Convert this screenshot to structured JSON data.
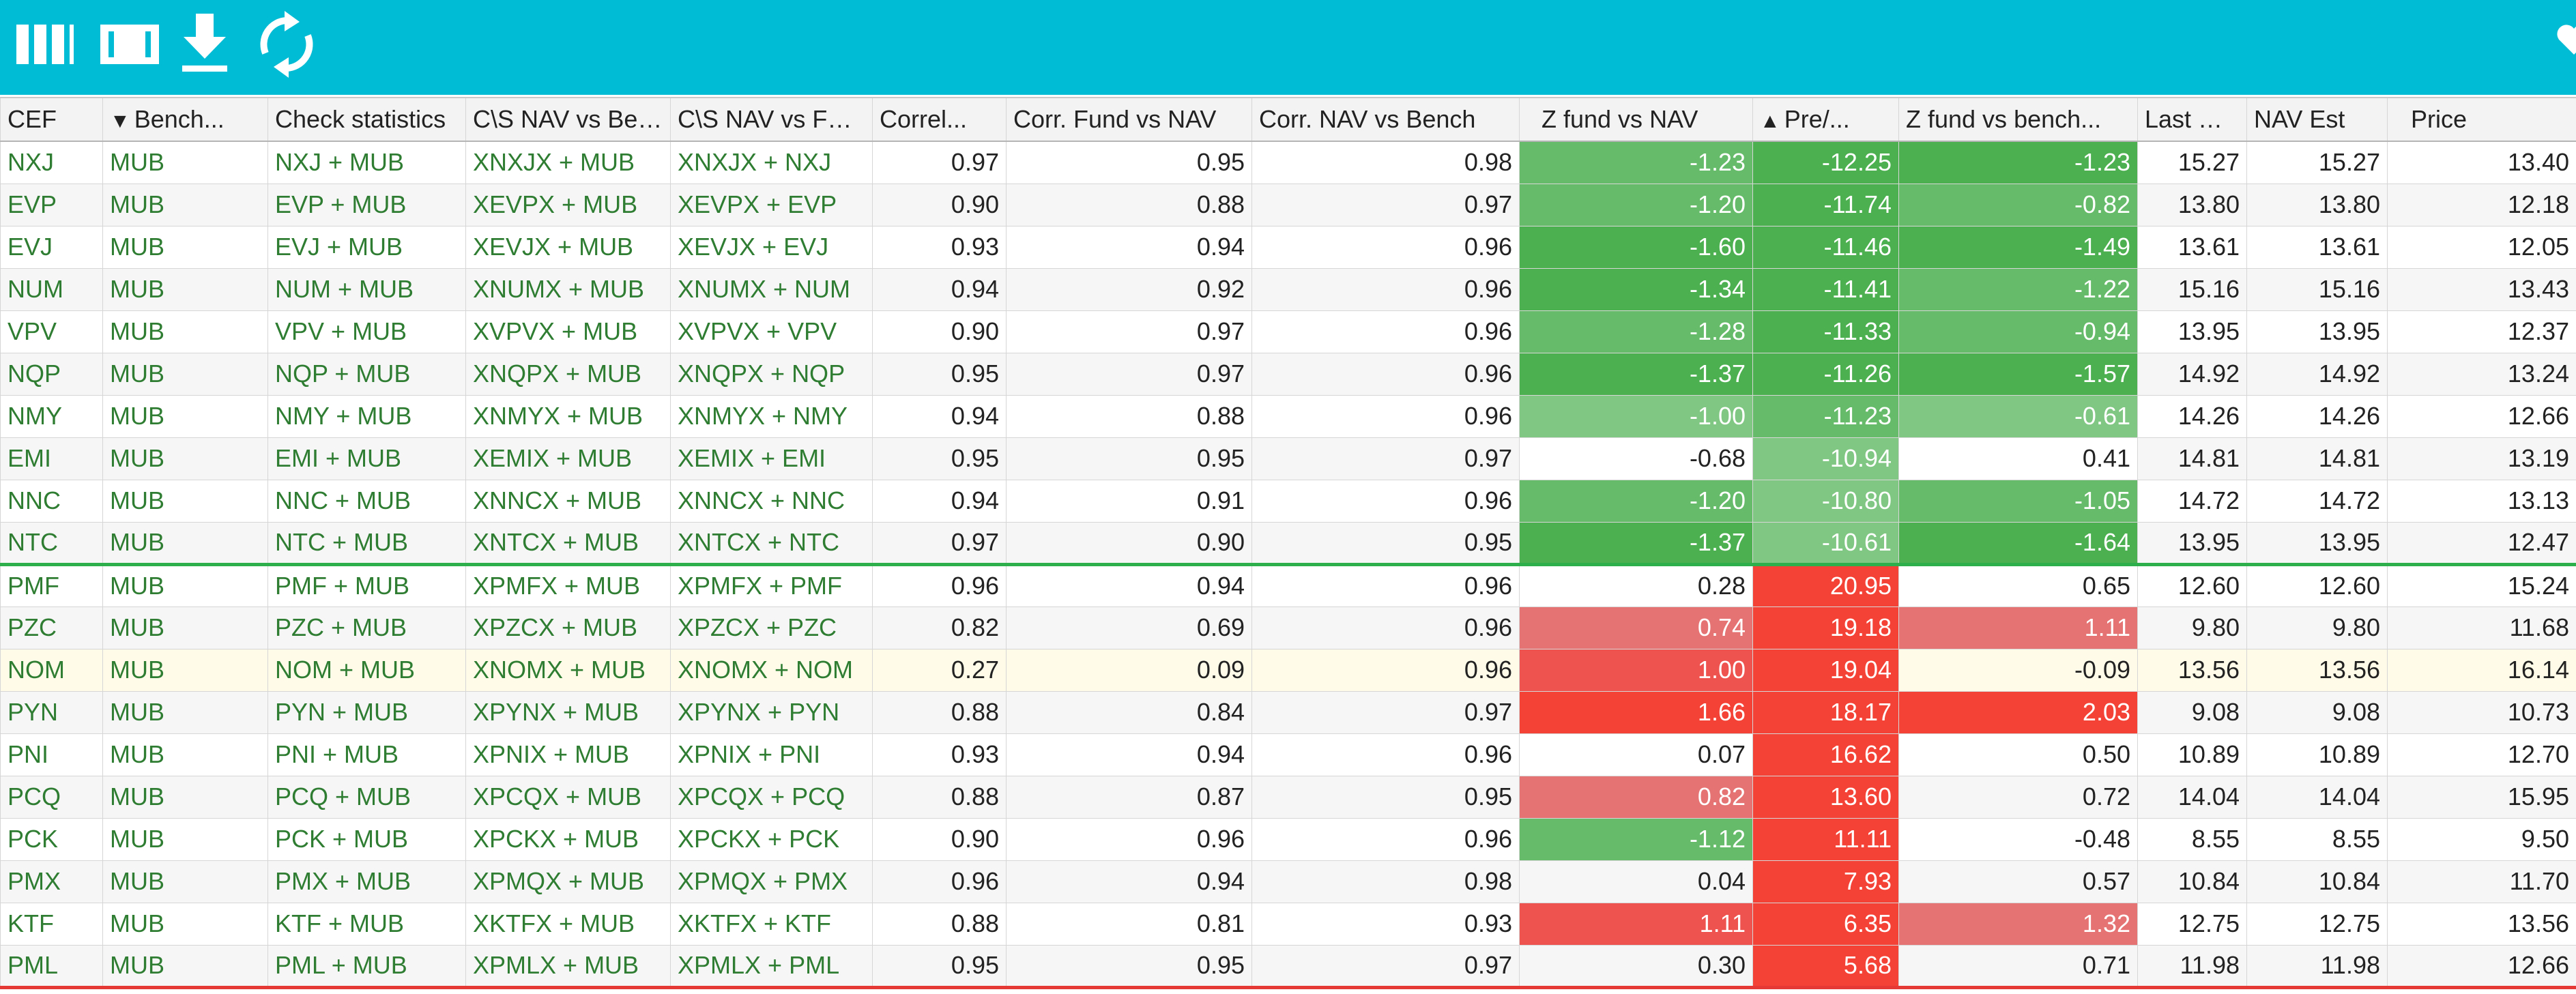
{
  "toolbar": {
    "icons": [
      "columns-icon",
      "column-chooser-icon",
      "download-icon",
      "refresh-icon",
      "favorite-icon"
    ]
  },
  "colors": {
    "toolbar_bg": "#00bcd4",
    "green_dark": "#4caf50",
    "green_mid": "#66bb6a",
    "green_light": "#81c784",
    "red_dark": "#f44336",
    "red_mid": "#ef5350",
    "red_light": "#e57373",
    "link_text": "#2e7d32"
  },
  "columns": [
    {
      "label": "CEF"
    },
    {
      "label": "Bench...",
      "icon": "filter-icon"
    },
    {
      "label": "Check statistics"
    },
    {
      "label": "C\\S NAV vs Ben..."
    },
    {
      "label": "C\\S NAV vs Fund"
    },
    {
      "label": "Correl..."
    },
    {
      "label": "Corr. Fund vs NAV"
    },
    {
      "label": "Corr. NAV vs Bench"
    },
    {
      "label": "Z fund vs NAV"
    },
    {
      "label": "Pre/...",
      "icon": "sort-ascending-icon"
    },
    {
      "label": "Z fund vs bench..."
    },
    {
      "label": "Last NAV"
    },
    {
      "label": "NAV Est"
    },
    {
      "label": "Price"
    }
  ],
  "rows": [
    {
      "cef": "NXJ",
      "bench": "MUB",
      "check": "NXJ + MUB",
      "cs_bench": "XNXJX + MUB",
      "cs_fund": "XNXJX + NXJ",
      "correl": "0.97",
      "corr_fund_nav": "0.95",
      "corr_nav_bench": "0.98",
      "z_fund_nav": "-1.23",
      "premium": "-12.25",
      "z_fund_bench": "-1.23",
      "last_nav": "15.27",
      "nav_est": "15.27",
      "price": "13.40"
    },
    {
      "cef": "EVP",
      "bench": "MUB",
      "check": "EVP + MUB",
      "cs_bench": "XEVPX + MUB",
      "cs_fund": "XEVPX + EVP",
      "correl": "0.90",
      "corr_fund_nav": "0.88",
      "corr_nav_bench": "0.97",
      "z_fund_nav": "-1.20",
      "premium": "-11.74",
      "z_fund_bench": "-0.82",
      "last_nav": "13.80",
      "nav_est": "13.80",
      "price": "12.18"
    },
    {
      "cef": "EVJ",
      "bench": "MUB",
      "check": "EVJ + MUB",
      "cs_bench": "XEVJX + MUB",
      "cs_fund": "XEVJX + EVJ",
      "correl": "0.93",
      "corr_fund_nav": "0.94",
      "corr_nav_bench": "0.96",
      "z_fund_nav": "-1.60",
      "premium": "-11.46",
      "z_fund_bench": "-1.49",
      "last_nav": "13.61",
      "nav_est": "13.61",
      "price": "12.05"
    },
    {
      "cef": "NUM",
      "bench": "MUB",
      "check": "NUM + MUB",
      "cs_bench": "XNUMX + MUB",
      "cs_fund": "XNUMX + NUM",
      "correl": "0.94",
      "corr_fund_nav": "0.92",
      "corr_nav_bench": "0.96",
      "z_fund_nav": "-1.34",
      "premium": "-11.41",
      "z_fund_bench": "-1.22",
      "last_nav": "15.16",
      "nav_est": "15.16",
      "price": "13.43"
    },
    {
      "cef": "VPV",
      "bench": "MUB",
      "check": "VPV + MUB",
      "cs_bench": "XVPVX + MUB",
      "cs_fund": "XVPVX + VPV",
      "correl": "0.90",
      "corr_fund_nav": "0.97",
      "corr_nav_bench": "0.96",
      "z_fund_nav": "-1.28",
      "premium": "-11.33",
      "z_fund_bench": "-0.94",
      "last_nav": "13.95",
      "nav_est": "13.95",
      "price": "12.37"
    },
    {
      "cef": "NQP",
      "bench": "MUB",
      "check": "NQP + MUB",
      "cs_bench": "XNQPX + MUB",
      "cs_fund": "XNQPX + NQP",
      "correl": "0.95",
      "corr_fund_nav": "0.97",
      "corr_nav_bench": "0.96",
      "z_fund_nav": "-1.37",
      "premium": "-11.26",
      "z_fund_bench": "-1.57",
      "last_nav": "14.92",
      "nav_est": "14.92",
      "price": "13.24"
    },
    {
      "cef": "NMY",
      "bench": "MUB",
      "check": "NMY + MUB",
      "cs_bench": "XNMYX + MUB",
      "cs_fund": "XNMYX + NMY",
      "correl": "0.94",
      "corr_fund_nav": "0.88",
      "corr_nav_bench": "0.96",
      "z_fund_nav": "-1.00",
      "premium": "-11.23",
      "z_fund_bench": "-0.61",
      "last_nav": "14.26",
      "nav_est": "14.26",
      "price": "12.66"
    },
    {
      "cef": "EMI",
      "bench": "MUB",
      "check": "EMI + MUB",
      "cs_bench": "XEMIX + MUB",
      "cs_fund": "XEMIX + EMI",
      "correl": "0.95",
      "corr_fund_nav": "0.95",
      "corr_nav_bench": "0.97",
      "z_fund_nav": "-0.68",
      "premium": "-10.94",
      "z_fund_bench": "0.41",
      "last_nav": "14.81",
      "nav_est": "14.81",
      "price": "13.19"
    },
    {
      "cef": "NNC",
      "bench": "MUB",
      "check": "NNC + MUB",
      "cs_bench": "XNNCX + MUB",
      "cs_fund": "XNNCX + NNC",
      "correl": "0.94",
      "corr_fund_nav": "0.91",
      "corr_nav_bench": "0.96",
      "z_fund_nav": "-1.20",
      "premium": "-10.80",
      "z_fund_bench": "-1.05",
      "last_nav": "14.72",
      "nav_est": "14.72",
      "price": "13.13"
    },
    {
      "cef": "NTC",
      "bench": "MUB",
      "check": "NTC + MUB",
      "cs_bench": "XNTCX + MUB",
      "cs_fund": "XNTCX + NTC",
      "correl": "0.97",
      "corr_fund_nav": "0.90",
      "corr_nav_bench": "0.95",
      "z_fund_nav": "-1.37",
      "premium": "-10.61",
      "z_fund_bench": "-1.64",
      "last_nav": "13.95",
      "nav_est": "13.95",
      "price": "12.47"
    },
    {
      "cef": "PMF",
      "bench": "MUB",
      "check": "PMF + MUB",
      "cs_bench": "XPMFX + MUB",
      "cs_fund": "XPMFX + PMF",
      "correl": "0.96",
      "corr_fund_nav": "0.94",
      "corr_nav_bench": "0.96",
      "z_fund_nav": "0.28",
      "premium": "20.95",
      "z_fund_bench": "0.65",
      "last_nav": "12.60",
      "nav_est": "12.60",
      "price": "15.24"
    },
    {
      "cef": "PZC",
      "bench": "MUB",
      "check": "PZC + MUB",
      "cs_bench": "XPZCX + MUB",
      "cs_fund": "XPZCX + PZC",
      "correl": "0.82",
      "corr_fund_nav": "0.69",
      "corr_nav_bench": "0.96",
      "z_fund_nav": "0.74",
      "premium": "19.18",
      "z_fund_bench": "1.11",
      "last_nav": "9.80",
      "nav_est": "9.80",
      "price": "11.68"
    },
    {
      "cef": "NOM",
      "bench": "MUB",
      "check": "NOM + MUB",
      "cs_bench": "XNOMX + MUB",
      "cs_fund": "XNOMX + NOM",
      "correl": "0.27",
      "corr_fund_nav": "0.09",
      "corr_nav_bench": "0.96",
      "z_fund_nav": "1.00",
      "premium": "19.04",
      "z_fund_bench": "-0.09",
      "last_nav": "13.56",
      "nav_est": "13.56",
      "price": "16.14"
    },
    {
      "cef": "PYN",
      "bench": "MUB",
      "check": "PYN + MUB",
      "cs_bench": "XPYNX + MUB",
      "cs_fund": "XPYNX + PYN",
      "correl": "0.88",
      "corr_fund_nav": "0.84",
      "corr_nav_bench": "0.97",
      "z_fund_nav": "1.66",
      "premium": "18.17",
      "z_fund_bench": "2.03",
      "last_nav": "9.08",
      "nav_est": "9.08",
      "price": "10.73"
    },
    {
      "cef": "PNI",
      "bench": "MUB",
      "check": "PNI + MUB",
      "cs_bench": "XPNIX + MUB",
      "cs_fund": "XPNIX + PNI",
      "correl": "0.93",
      "corr_fund_nav": "0.94",
      "corr_nav_bench": "0.96",
      "z_fund_nav": "0.07",
      "premium": "16.62",
      "z_fund_bench": "0.50",
      "last_nav": "10.89",
      "nav_est": "10.89",
      "price": "12.70"
    },
    {
      "cef": "PCQ",
      "bench": "MUB",
      "check": "PCQ + MUB",
      "cs_bench": "XPCQX + MUB",
      "cs_fund": "XPCQX + PCQ",
      "correl": "0.88",
      "corr_fund_nav": "0.87",
      "corr_nav_bench": "0.95",
      "z_fund_nav": "0.82",
      "premium": "13.60",
      "z_fund_bench": "0.72",
      "last_nav": "14.04",
      "nav_est": "14.04",
      "price": "15.95"
    },
    {
      "cef": "PCK",
      "bench": "MUB",
      "check": "PCK + MUB",
      "cs_bench": "XPCKX + MUB",
      "cs_fund": "XPCKX + PCK",
      "correl": "0.90",
      "corr_fund_nav": "0.96",
      "corr_nav_bench": "0.96",
      "z_fund_nav": "-1.12",
      "premium": "11.11",
      "z_fund_bench": "-0.48",
      "last_nav": "8.55",
      "nav_est": "8.55",
      "price": "9.50"
    },
    {
      "cef": "PMX",
      "bench": "MUB",
      "check": "PMX + MUB",
      "cs_bench": "XPMQX + MUB",
      "cs_fund": "XPMQX + PMX",
      "correl": "0.96",
      "corr_fund_nav": "0.94",
      "corr_nav_bench": "0.98",
      "z_fund_nav": "0.04",
      "premium": "7.93",
      "z_fund_bench": "0.57",
      "last_nav": "10.84",
      "nav_est": "10.84",
      "price": "11.70"
    },
    {
      "cef": "KTF",
      "bench": "MUB",
      "check": "KTF + MUB",
      "cs_bench": "XKTFX + MUB",
      "cs_fund": "XKTFX + KTF",
      "correl": "0.88",
      "corr_fund_nav": "0.81",
      "corr_nav_bench": "0.93",
      "z_fund_nav": "1.11",
      "premium": "6.35",
      "z_fund_bench": "1.32",
      "last_nav": "12.75",
      "nav_est": "12.75",
      "price": "13.56"
    },
    {
      "cef": "PML",
      "bench": "MUB",
      "check": "PML + MUB",
      "cs_bench": "XPMLX + MUB",
      "cs_fund": "XPMLX + PML",
      "correl": "0.95",
      "corr_fund_nav": "0.95",
      "corr_nav_bench": "0.97",
      "z_fund_nav": "0.30",
      "premium": "5.68",
      "z_fund_bench": "0.71",
      "last_nav": "11.98",
      "nav_est": "11.98",
      "price": "12.66"
    }
  ]
}
